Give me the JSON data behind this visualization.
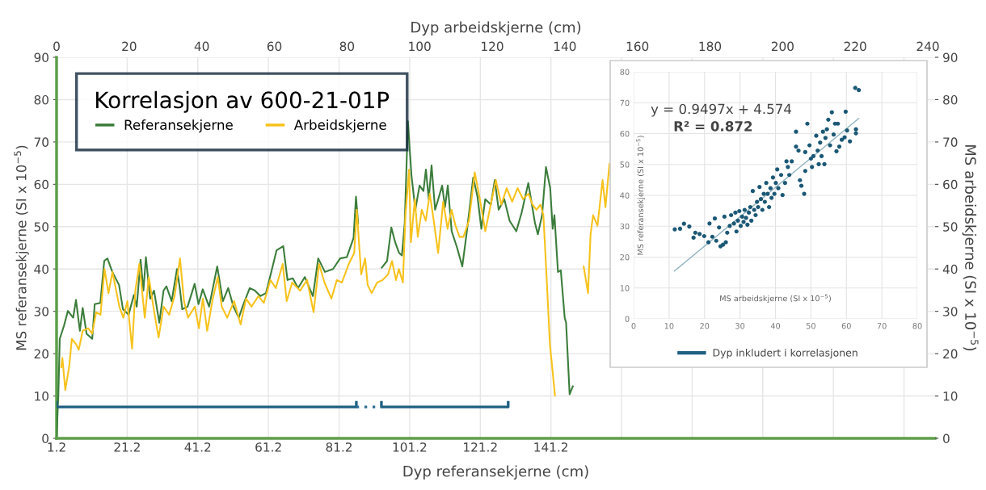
{
  "chart_data": [
    {
      "type": "line",
      "title": "Korrelasjon av 600-21-01P",
      "xlabel": "Dyp referansekjerne (cm)",
      "x2label": "Dyp arbeidskjerne (cm)",
      "ylabel": "MS referansekjerne (SI x 10$^{−5}$)",
      "y2label": "MS arbeidskjerne (SI x 10$^{−5}$)",
      "xlim": [
        1.2,
        250
      ],
      "xticks": [
        1.2,
        21.2,
        41.2,
        61.2,
        81.2,
        101.2,
        121.2,
        141.2,
        {
          "value": 161.2,
          "label": null
        },
        {
          "value": 181.2,
          "label": null
        },
        {
          "value": 201.2,
          "label": null
        },
        {
          "value": 221.2,
          "label": null
        },
        {
          "value": 241.2,
          "label": null
        }
      ],
      "x2lim": [
        0,
        242
      ],
      "x2ticks": [
        0,
        20,
        40,
        60,
        80,
        100,
        120,
        140,
        160,
        180,
        200,
        220,
        240
      ],
      "ylim": [
        0,
        90
      ],
      "yticks": [
        0,
        10,
        20,
        30,
        40,
        50,
        60,
        70,
        80,
        90
      ],
      "y2lim": [
        0,
        90
      ],
      "y2ticks": [
        0,
        10,
        20,
        30,
        40,
        50,
        60,
        70,
        80,
        90
      ],
      "grid": true,
      "legend": "top left",
      "marker": "none",
      "series": [
        {
          "name": "Referansekjerne",
          "color": "#3b7d3b",
          "x": [
            1.2,
            1.7,
            2.1,
            3.3,
            4.4,
            5.9,
            6.7,
            7.8,
            8.6,
            9.7,
            11.3,
            12.0,
            13.6,
            14.7,
            15.6,
            17.0,
            18.9,
            20.0,
            21.6,
            23.1,
            23.9,
            25.0,
            25.8,
            26.5,
            27.7,
            28.8,
            30.3,
            31.5,
            32.3,
            33.8,
            35.3,
            36.1,
            36.8,
            38.3,
            40.3,
            41.4,
            42.6,
            44.4,
            46.7,
            48.3,
            49.8,
            51.3,
            52.8,
            54.0,
            55.9,
            57.4,
            58.9,
            60.5,
            62.0,
            63.5,
            65.4,
            66.6,
            68.1,
            69.6,
            71.5,
            73.8,
            75.3,
            77.2,
            79.5,
            81.5,
            83.4,
            85.3,
            86.0,
            86.6,
            90.0,
            93.3,
            94.8,
            96.0,
            97.1,
            98.2,
            99.0,
            99.8,
            100.7,
            101.7,
            102.8,
            104.0,
            105.1,
            105.8,
            106.6,
            107.4,
            108.4,
            109.3,
            110.4,
            111.2,
            112.0,
            113.1,
            114.6,
            116.1,
            117.3,
            119.2,
            120.4,
            121.5,
            122.6,
            124.2,
            125.3,
            126.4,
            128.0,
            129.5,
            131.4,
            132.9,
            134.8,
            136.7,
            137.5,
            138.7,
            139.8,
            141.0,
            141.7,
            142.2,
            143.2,
            144.0,
            145.1,
            145.5,
            146.5,
            147.4
          ],
          "values": [
            0.5,
            10,
            23.5,
            26.6,
            30.1,
            28.5,
            32.7,
            25.4,
            30.8,
            24.7,
            23.5,
            31.7,
            32,
            41.9,
            42.5,
            39.3,
            36.2,
            30.5,
            29.2,
            33.9,
            31.1,
            42.2,
            34.9,
            42.8,
            33,
            34.9,
            27.3,
            34.9,
            35.9,
            32.4,
            40,
            35.5,
            30.5,
            31.1,
            36.5,
            31.7,
            35.2,
            31.1,
            40.6,
            32.4,
            35.5,
            31.1,
            28.5,
            31.4,
            35.5,
            34.9,
            33.6,
            34.3,
            39.3,
            44.4,
            45.4,
            37.4,
            37.8,
            35.5,
            38.1,
            33.6,
            42.5,
            39.3,
            40,
            42.5,
            42.8,
            47.3,
            57.1,
            50.8,
            null,
            40.3,
            41.9,
            49.8,
            46.3,
            43.8,
            43.2,
            50.8,
            74.9,
            62.2,
            54,
            59.7,
            58.4,
            63.5,
            56.5,
            64.5,
            54,
            56.5,
            59.7,
            54.6,
            59.7,
            48.9,
            45.1,
            40.6,
            48.2,
            61.6,
            57.1,
            49.5,
            56.5,
            55.2,
            61,
            54,
            56.5,
            51.4,
            48.9,
            53.3,
            60.3,
            50.8,
            48.2,
            52.7,
            64.1,
            59.1,
            49.5,
            52.7,
            39.3,
            39.7,
            28.5,
            27.3,
            10.4,
            12.3
          ]
        },
        {
          "name": "Arbeidskjerne",
          "color": "#f7c21c",
          "axis": "x2",
          "x": [
            1.3,
            1.6,
            2.4,
            3.5,
            4.2,
            5.4,
            6.1,
            7.2,
            8.7,
            9.8,
            10.9,
            12.1,
            13.2,
            14.3,
            15.4,
            17.3,
            18.4,
            19.5,
            20.8,
            21.7,
            22.8,
            24.3,
            25.4,
            26.9,
            28.1,
            29.5,
            31.0,
            32.5,
            34.0,
            35.1,
            36.2,
            38.1,
            39.2,
            40.3,
            41.5,
            42.9,
            44.4,
            45.5,
            47.0,
            48.9,
            50.7,
            52.2,
            53.7,
            55.6,
            57.1,
            58.9,
            60.4,
            62.3,
            63.4,
            64.9,
            67.1,
            69.0,
            70.8,
            72.3,
            73.8,
            75.7,
            77.2,
            78.6,
            80.5,
            82.0,
            82.7,
            83.9,
            85.0,
            85.7,
            86.8,
            88.3,
            89.8,
            91.3,
            92.4,
            93.5,
            94.3,
            95.4,
            96.1,
            97.1,
            97.6,
            98.7,
            99.5,
            100.6,
            101.7,
            102.8,
            103.9,
            105.1,
            106.5,
            107.7,
            108.8,
            109.9,
            111.0,
            112.1,
            113.6,
            115.2,
            116.6,
            118.1,
            119.6,
            121.0,
            122.5,
            124.0,
            125.5,
            127.0,
            128.5,
            130.0,
            131.1,
            132.2,
            133.3,
            134.1,
            134.8,
            135.9,
            137.3,
            141.0,
            145.2,
            146.4,
            147.1,
            147.8,
            149.0,
            150.4,
            151.2,
            152.3
          ],
          "values": [
            16.8,
            19,
            11.4,
            17.1,
            23.5,
            22.2,
            20.9,
            25.4,
            26,
            24.7,
            29.8,
            29.2,
            40,
            34.3,
            39.3,
            31.1,
            28.5,
            32.4,
            21.2,
            34.9,
            41.2,
            28.5,
            38.1,
            29.8,
            23.8,
            31.1,
            29.2,
            33.6,
            42.5,
            32.4,
            28.5,
            31.1,
            26,
            33,
            25.4,
            32.4,
            38.1,
            31.1,
            28.5,
            32.4,
            26.9,
            33,
            31.1,
            33.6,
            32,
            37.4,
            35.5,
            41.2,
            32.4,
            36.8,
            34.9,
            37.4,
            29.8,
            41.2,
            36.8,
            33,
            37.4,
            36.8,
            41.2,
            43.8,
            54,
            38.7,
            42.5,
            36.2,
            34.3,
            36.8,
            37.4,
            38.7,
            41.9,
            37.4,
            40,
            36.8,
            52.7,
            63.5,
            46.3,
            56.5,
            47.6,
            54,
            51.4,
            57.8,
            51.4,
            43.8,
            55.9,
            49.5,
            54,
            50.2,
            47.6,
            47.6,
            51.4,
            62.8,
            56.5,
            48.9,
            55.2,
            61,
            55.2,
            59.1,
            55.9,
            59.1,
            56.5,
            57.8,
            55.2,
            54,
            55.2,
            52.7,
            41.2,
            22.2,
            10.1,
            null,
            40.6,
            34.3,
            48.2,
            52.7,
            50.2,
            61,
            54.6,
            64.8
          ]
        },
        {
          "name": "Dyp inkludert i korrelasjonen",
          "color": "#1f5f82",
          "x": [
            1.2,
            1.2,
            86.1,
            86.1,
            89.6,
            93.2,
            93.2,
            129.1,
            129.1
          ],
          "values": [
            8.5,
            7.4,
            7.4,
            8.5,
            null,
            8.5,
            7.4,
            7.4,
            8.5
          ]
        },
        {
          "color": "#2d6f96",
          "line_style": "dotted",
          "x": [
            86.1,
            93.2
          ],
          "values": [
            7.4,
            7.4
          ]
        }
      ]
    },
    {
      "type": "scatter",
      "xlabel": "MS arbeidskjerne (SI x 10$^{−5}$)",
      "ylabel": "MS referansekjerne (SI x 10$^{−5}$)",
      "xlim": [
        0,
        80
      ],
      "ylim": [
        0,
        80
      ],
      "xticks": [
        0,
        10,
        20,
        30,
        40,
        50,
        60,
        70,
        80
      ],
      "yticks": [
        0,
        10,
        20,
        30,
        40,
        50,
        60,
        70,
        80
      ],
      "grid": true,
      "annotations": [
        "y = 0.9497x + 4.574",
        "R² = 0.872"
      ],
      "series": [
        {
          "color": "#1b5875",
          "marker": "circle",
          "x": [
            11.6,
            13.1,
            14.2,
            15.7,
            16.9,
            17.4,
            18.6,
            19.9,
            21.1,
            21.4,
            22.2,
            22.9,
            23.3,
            24.1,
            24.5,
            25.2,
            26.0,
            25.6,
            26.4,
            27.1,
            27.5,
            28.3,
            28.7,
            29.0,
            29.4,
            29.8,
            30.2,
            30.6,
            31.0,
            31.3,
            31.7,
            32.1,
            32.5,
            32.9,
            33.2,
            33.6,
            34.0,
            34.4,
            34.8,
            35.1,
            35.5,
            35.9,
            36.3,
            36.7,
            37.0,
            37.4,
            37.8,
            38.2,
            38.6,
            38.9,
            39.3,
            39.7,
            40.1,
            40.5,
            40.8,
            41.6,
            42.0,
            42.7,
            43.5,
            43.1,
            43.9,
            44.6,
            45.8,
            45.8,
            46.5,
            46.9,
            47.3,
            48.1,
            48.4,
            48.4,
            49.0,
            49.6,
            50.0,
            50.3,
            50.7,
            51.5,
            51.9,
            52.2,
            52.6,
            53.0,
            53.4,
            53.8,
            54.1,
            54.5,
            54.9,
            55.4,
            55.9,
            56.4,
            56.8,
            57.2,
            57.6,
            58.0,
            58.7,
            59.5,
            59.8,
            60.2,
            61.0,
            62.7,
            62.5,
            63.5,
            62.7
          ],
          "values": [
            29.0,
            29.2,
            30.8,
            29.9,
            26.3,
            27.9,
            27.5,
            26.8,
            24.8,
            30.9,
            26.6,
            32.5,
            25.3,
            29.6,
            23.5,
            24.0,
            24.8,
            33.1,
            27.9,
            30.1,
            33.6,
            30.9,
            34.4,
            28.3,
            31.8,
            34.9,
            30.1,
            33.1,
            31.4,
            35.3,
            32.7,
            30.5,
            34.4,
            36.2,
            31.8,
            41.4,
            35.3,
            33.6,
            37.9,
            36.2,
            42.7,
            38.8,
            35.3,
            40.5,
            37.9,
            44.0,
            40.5,
            36.2,
            42.3,
            39.2,
            45.8,
            40.5,
            44.0,
            48.4,
            42.3,
            46.6,
            40.1,
            44.0,
            49.2,
            51.0,
            46.6,
            51.0,
            60.6,
            55.8,
            54.5,
            44.9,
            43.1,
            40.5,
            47.9,
            54.0,
            63.2,
            56.2,
            51.9,
            49.2,
            52.7,
            59.3,
            54.5,
            50.1,
            57.1,
            52.7,
            60.6,
            50.1,
            58.6,
            61.4,
            64.5,
            56.2,
            66.9,
            59.7,
            63.2,
            54.3,
            63.2,
            55.8,
            58.0,
            58.8,
            67.1,
            61.0,
            57.5,
            61.4,
            74.8,
            74.1,
            60.1
          ]
        },
        {
          "type": "line",
          "color": "#8fb3bf",
          "x": [
            11.5,
            63.5
          ],
          "values": [
            15.5,
            64.9
          ]
        }
      ]
    }
  ]
}
